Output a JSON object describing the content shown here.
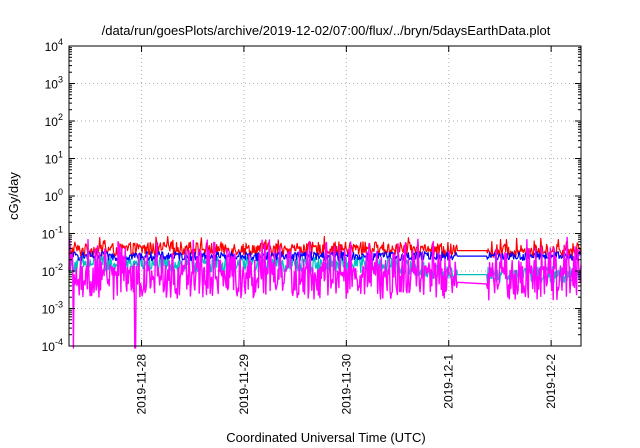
{
  "chart_data": {
    "type": "line",
    "title": "/data/run/goesPlots/archive/2019-12-02/07:00/flux/../bryn/5daysEarthData.plot",
    "xlabel": "Coordinated Universal Time (UTC)",
    "ylabel": "cGy/day",
    "yscale": "log",
    "ylim": [
      0.0001,
      10000
    ],
    "y_ticks": [
      {
        "base": "10",
        "exp": "-4"
      },
      {
        "base": "10",
        "exp": "-3"
      },
      {
        "base": "10",
        "exp": "-2"
      },
      {
        "base": "10",
        "exp": "-1"
      },
      {
        "base": "10",
        "exp": "0"
      },
      {
        "base": "10",
        "exp": "1"
      },
      {
        "base": "10",
        "exp": "2"
      },
      {
        "base": "10",
        "exp": "3"
      },
      {
        "base": "10",
        "exp": "4"
      }
    ],
    "x_ticks": [
      "2019-11-28",
      "2019-11-29",
      "2019-11-30",
      "2019-12-1",
      "2019-12-2"
    ],
    "xlim": [
      "2019-11-27 07:00",
      "2019-12-02 07:00"
    ],
    "grid": true,
    "series": [
      {
        "color": "#ff0000",
        "data_gap": [
          "2019-12-01 02:00",
          "2019-12-01 09:00"
        ],
        "x": [
          "2019-11-27 07:00",
          "2019-11-28 07:00",
          "2019-11-29 07:00",
          "2019-11-30 07:00",
          "2019-12-01 02:00",
          "2019-12-01 09:00",
          "2019-12-02 07:00"
        ],
        "y": [
          0.035,
          0.04,
          0.038,
          0.04,
          0.035,
          0.035,
          0.035
        ]
      },
      {
        "color": "#00bfbf",
        "x": [
          "2019-11-27 07:00",
          "2019-11-28 07:00",
          "2019-11-29 07:00",
          "2019-11-30 07:00",
          "2019-12-01 02:00",
          "2019-12-01 09:00",
          "2019-12-02 07:00"
        ],
        "y": [
          0.015,
          0.015,
          0.015,
          0.015,
          0.008,
          0.008,
          0.008
        ]
      },
      {
        "color": "#0000ff",
        "x": [
          "2019-11-27 07:00",
          "2019-11-28 07:00",
          "2019-11-29 07:00",
          "2019-11-30 07:00",
          "2019-12-01 02:00",
          "2019-12-01 09:00",
          "2019-12-02 07:00"
        ],
        "y": [
          0.025,
          0.025,
          0.025,
          0.025,
          0.025,
          0.025,
          0.025
        ]
      },
      {
        "color": "#ff00ff",
        "x": [
          "2019-11-27 07:00",
          "2019-11-28 07:00",
          "2019-11-29 07:00",
          "2019-11-30 07:00",
          "2019-12-01 02:00",
          "2019-12-01 09:00",
          "2019-12-02 07:00"
        ],
        "y": [
          0.005,
          0.005,
          0.005,
          0.005,
          0.005,
          0.0045,
          0.005
        ],
        "spikes_down": [
          [
            "2019-11-27 08:00",
            0.0001
          ],
          [
            "2019-11-27 22:30",
            0.0001
          ]
        ]
      }
    ]
  }
}
